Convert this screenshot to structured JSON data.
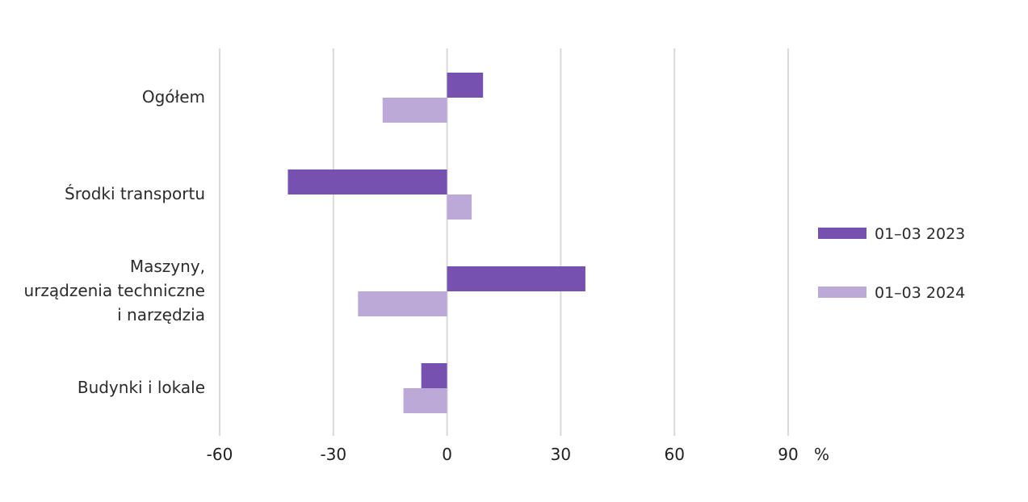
{
  "chart_data": {
    "type": "bar",
    "orientation": "horizontal",
    "categories": [
      [
        "Ogółem"
      ],
      [
        "Środki transportu"
      ],
      [
        "Maszyny,",
        "urządzenia techniczne",
        "i narzędzia"
      ],
      [
        "Budynki i lokale"
      ]
    ],
    "series": [
      {
        "name": "01–03 2023",
        "color": "#7651b0",
        "values": [
          9.5,
          -42.0,
          36.5,
          -6.8
        ]
      },
      {
        "name": "01–03 2024",
        "color": "#bca9d8",
        "values": [
          -17.0,
          6.5,
          -23.5,
          -11.5
        ]
      }
    ],
    "x_ticks": [
      "-60",
      "-30",
      "0",
      "30",
      "60",
      "90"
    ],
    "x_tick_values": [
      -60,
      -30,
      0,
      30,
      60,
      90
    ],
    "xlim": [
      -60,
      90
    ],
    "unit_label": "%",
    "grid": true,
    "legend_position": "right"
  }
}
